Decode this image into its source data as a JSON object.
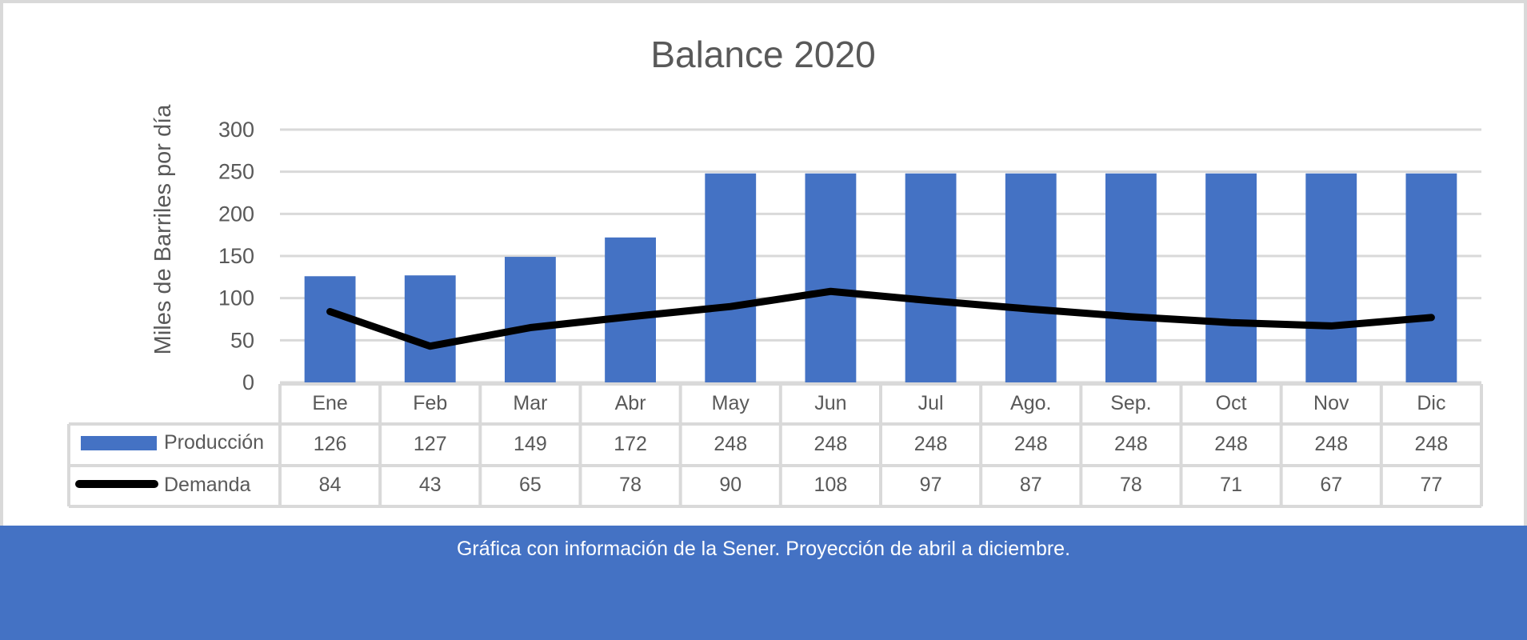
{
  "caption": "Gráfica con información de la Sener. Proyección de abril a diciembre.",
  "colors": {
    "bar": "#4472c4",
    "line": "#000000",
    "footer": "#4472c4",
    "grid": "#d9d9d9",
    "text": "#595959"
  },
  "chart_data": {
    "type": "bar",
    "title": "Balance 2020",
    "xlabel": "",
    "ylabel": "Miles de Barriles por  día",
    "ylim": [
      0,
      300
    ],
    "yticks": [
      0,
      50,
      100,
      150,
      200,
      250,
      300
    ],
    "grid": true,
    "data_table": true,
    "categories": [
      "Ene",
      "Feb",
      "Mar",
      "Abr",
      "May",
      "Jun",
      "Jul",
      "Ago.",
      "Sep.",
      "Oct",
      "Nov",
      "Dic"
    ],
    "series": [
      {
        "name": "Producción",
        "type": "bar",
        "values": [
          126,
          127,
          149,
          172,
          248,
          248,
          248,
          248,
          248,
          248,
          248,
          248
        ]
      },
      {
        "name": "Demanda",
        "type": "line",
        "values": [
          84,
          43,
          65,
          78,
          90,
          108,
          97,
          87,
          78,
          71,
          67,
          77
        ]
      }
    ]
  }
}
